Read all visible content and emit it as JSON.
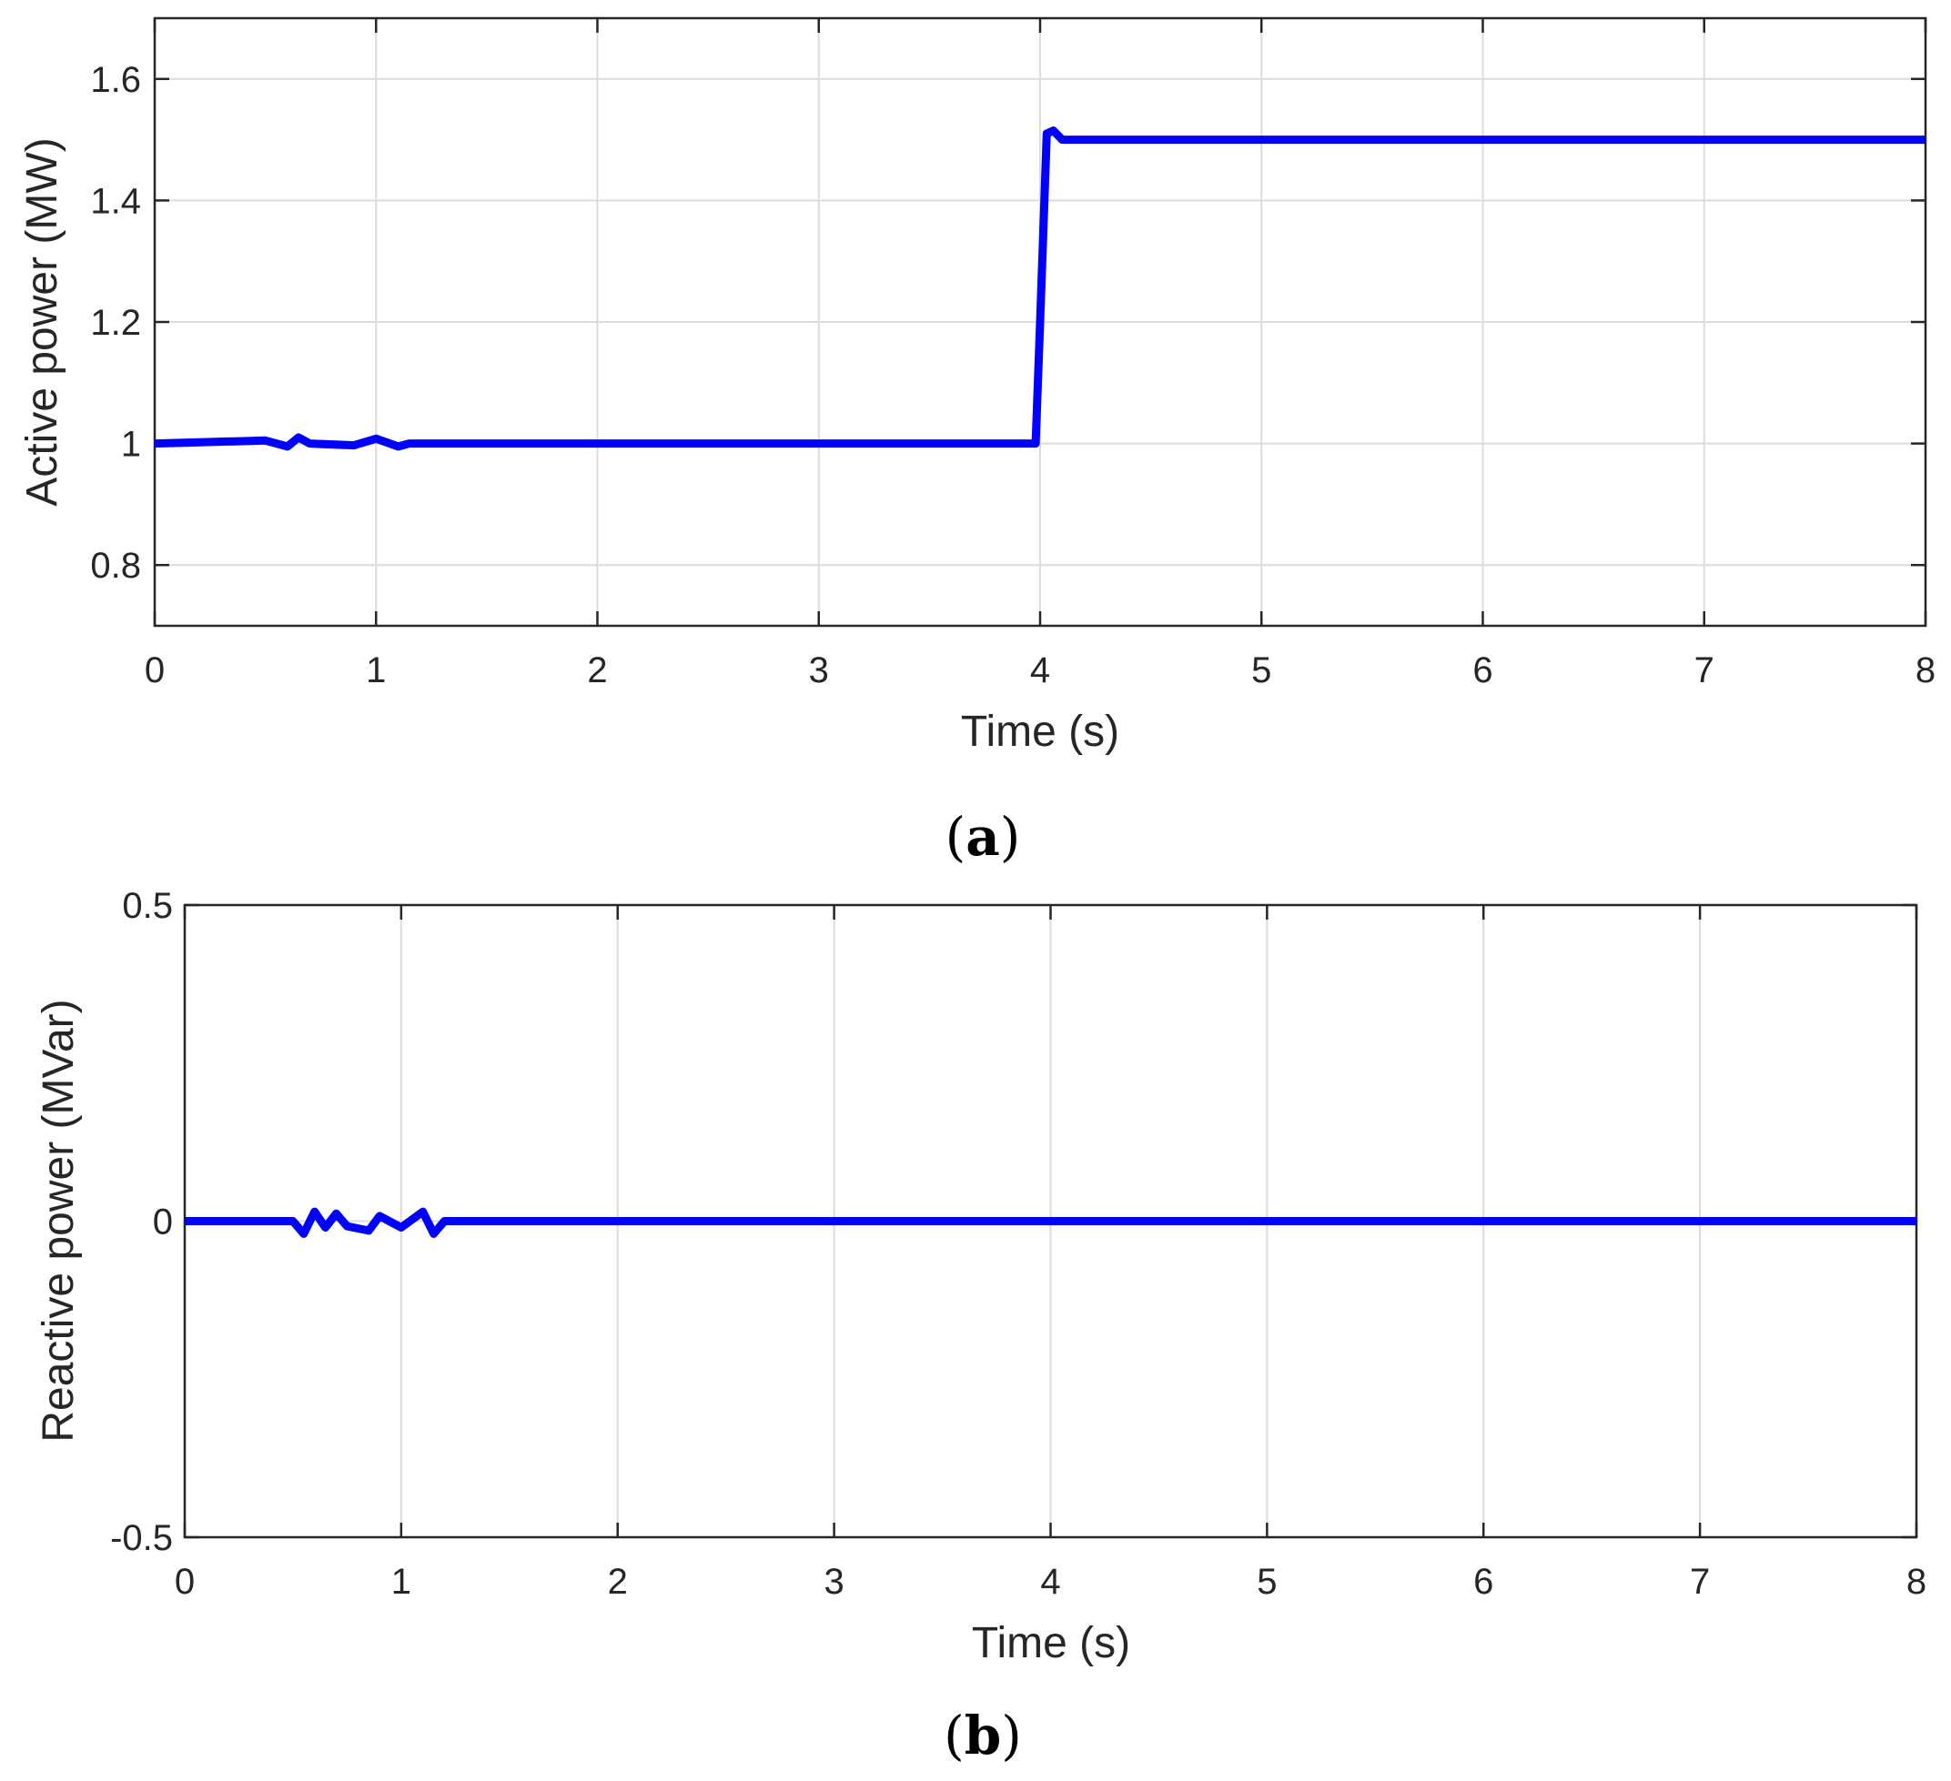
{
  "chart_data": [
    {
      "type": "line",
      "panel_label": "a",
      "xlabel": "Time (s)",
      "ylabel": "Active power (MW)",
      "xlim": [
        0,
        8
      ],
      "ylim": [
        0.7,
        1.7
      ],
      "xticks": [
        0,
        1,
        2,
        3,
        4,
        5,
        6,
        7,
        8
      ],
      "xtick_labels": [
        "0",
        "1",
        "2",
        "3",
        "4",
        "5",
        "6",
        "7",
        "8"
      ],
      "yticks": [
        0.8,
        1.0,
        1.2,
        1.4,
        1.6
      ],
      "ytick_labels": [
        "0.8",
        "1",
        "1.2",
        "1.4",
        "1.6"
      ],
      "grid": true,
      "series": [
        {
          "color": "#0000ff",
          "x": [
            0,
            0.5,
            0.6,
            0.65,
            0.7,
            0.9,
            1.0,
            1.1,
            1.15,
            2.0,
            3.0,
            3.98,
            4.0,
            4.03,
            4.06,
            4.1,
            5.0,
            6.0,
            7.0,
            8.0
          ],
          "y": [
            1.0,
            1.005,
            0.995,
            1.01,
            1.0,
            0.997,
            1.008,
            0.995,
            1.0,
            1.0,
            1.0,
            1.0,
            1.2,
            1.51,
            1.515,
            1.5,
            1.5,
            1.5,
            1.5,
            1.5
          ]
        }
      ]
    },
    {
      "type": "line",
      "panel_label": "b",
      "xlabel": "Time (s)",
      "ylabel": "Reactive power (MVar)",
      "xlim": [
        0,
        8
      ],
      "ylim": [
        -0.5,
        0.5
      ],
      "xticks": [
        0,
        1,
        2,
        3,
        4,
        5,
        6,
        7,
        8
      ],
      "xtick_labels": [
        "0",
        "1",
        "2",
        "3",
        "4",
        "5",
        "6",
        "7",
        "8"
      ],
      "yticks": [
        -0.5,
        0,
        0.5
      ],
      "ytick_labels": [
        "-0.5",
        "0",
        "0.5"
      ],
      "grid": true,
      "series": [
        {
          "color": "#0000ff",
          "x": [
            0,
            0.5,
            0.55,
            0.6,
            0.65,
            0.7,
            0.75,
            0.85,
            0.9,
            1.0,
            1.1,
            1.15,
            1.2,
            2.0,
            3.0,
            4.0,
            5.0,
            6.0,
            7.0,
            8.0
          ],
          "y": [
            0,
            0,
            -0.02,
            0.015,
            -0.01,
            0.012,
            -0.008,
            -0.015,
            0.008,
            -0.01,
            0.015,
            -0.02,
            0,
            0,
            0,
            0,
            0,
            0,
            0,
            0
          ]
        }
      ]
    }
  ]
}
